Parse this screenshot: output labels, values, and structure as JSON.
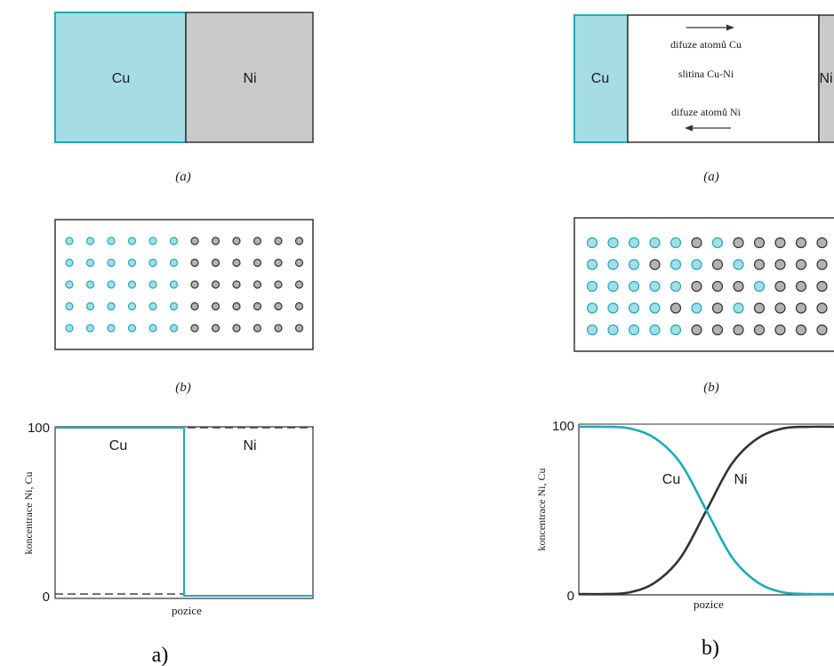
{
  "colors": {
    "cu": "#1faab8",
    "cu_fill": "#a6dde5",
    "ni_fill": "#c9c9c9",
    "ni_atom": "#b3b3b3",
    "line_dark": "#333333",
    "text": "#1a1a1a"
  },
  "left": {
    "block": {
      "cu_label": "Cu",
      "ni_label": "Ni",
      "caption": "(a)"
    },
    "lattice": {
      "caption": "(b)",
      "rows": [
        "CCCCCCNNNNNN",
        "CCCCCCNNNNNN",
        "CCCCCCNNNNNN",
        "CCCCCCNNNNNN",
        "CCCCCCNNNNNN"
      ]
    },
    "chart": {
      "y_tick_top": "100",
      "y_tick_bottom": "0",
      "ylabel": "koncentrace Ni, Cu",
      "xlabel": "pozice",
      "cu_label": "Cu",
      "ni_label": "Ni"
    },
    "figure_label": "a)"
  },
  "right": {
    "block": {
      "cu_label": "Cu",
      "ni_label": "Ni",
      "diffusion_cu": "difuze atomů Cu",
      "alloy": "slitina Cu-Ni",
      "diffusion_ni": "difuze atomů Ni",
      "caption": "(a)"
    },
    "lattice": {
      "caption": "(b)",
      "rows": [
        "CCCCCNCNNNNN",
        "CCCNCCNCNNNN",
        "CCCCCNNNCNNN",
        "CCCCNCNCNNNN",
        "CCCCCNNNNNNN"
      ]
    },
    "chart": {
      "y_tick_top": "100",
      "y_tick_bottom": "0",
      "ylabel": "koncentrace Ni, Cu",
      "xlabel": "pozice",
      "cu_label": "Cu",
      "ni_label": "Ni"
    },
    "figure_label": "b)"
  },
  "chart_data": [
    {
      "type": "line",
      "ylabel": "koncentrace Ni, Cu",
      "xlabel": "pozice",
      "yticks": [
        "0",
        "100"
      ],
      "ylim": [
        0,
        100
      ],
      "series": [
        {
          "name": "Cu",
          "x": [
            0,
            0.5,
            0.5,
            1
          ],
          "y": [
            100,
            100,
            0,
            0
          ]
        },
        {
          "name": "Ni",
          "x": [
            0,
            0.5,
            0.5,
            1
          ],
          "y": [
            0,
            0,
            100,
            100
          ]
        }
      ]
    },
    {
      "type": "line",
      "ylabel": "koncentrace Ni, Cu",
      "xlabel": "pozice",
      "yticks": [
        "0",
        "100"
      ],
      "ylim": [
        0,
        100
      ],
      "series": [
        {
          "name": "Cu",
          "x": [
            0,
            0.1,
            0.2,
            0.3,
            0.4,
            0.5,
            0.6,
            0.7,
            0.8,
            0.9,
            1
          ],
          "y": [
            100,
            100,
            99,
            93,
            78,
            50,
            22,
            7,
            1,
            0,
            0
          ]
        },
        {
          "name": "Ni",
          "x": [
            0,
            0.1,
            0.2,
            0.3,
            0.4,
            0.5,
            0.6,
            0.7,
            0.8,
            0.9,
            1
          ],
          "y": [
            0,
            0,
            1,
            7,
            22,
            50,
            78,
            93,
            99,
            100,
            100
          ]
        }
      ]
    }
  ]
}
